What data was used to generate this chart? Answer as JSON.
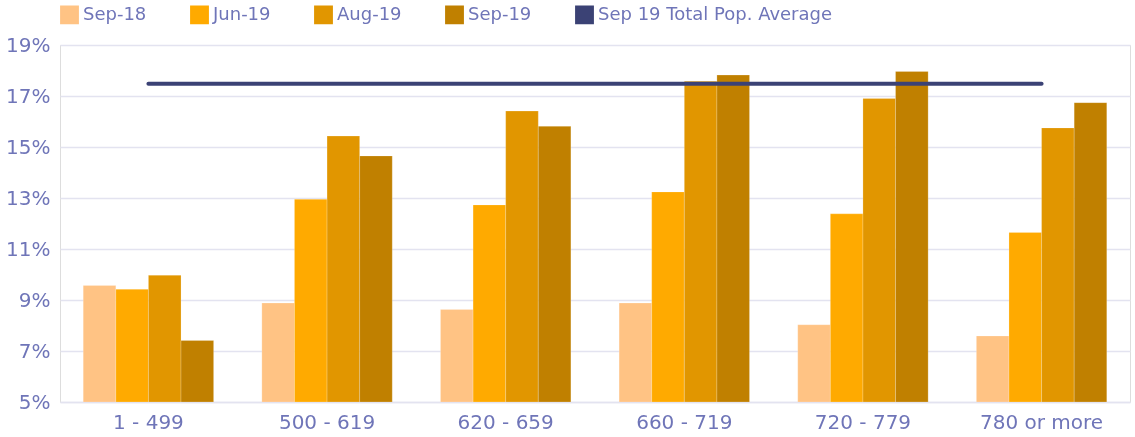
{
  "chart_data": {
    "type": "bar",
    "categories": [
      "1 - 499",
      "500 - 619",
      "620 - 659",
      "660 - 719",
      "720 - 779",
      "780 or more"
    ],
    "series": [
      {
        "name": "Sep-18",
        "color": "#ffc384",
        "values": [
          9.57,
          8.88,
          8.63,
          8.88,
          8.03,
          7.59
        ]
      },
      {
        "name": "Jun-19",
        "color": "#ffaa00",
        "values": [
          9.42,
          12.95,
          12.73,
          13.24,
          12.38,
          11.65
        ]
      },
      {
        "name": "Aug-19",
        "color": "#e19600",
        "values": [
          9.97,
          15.43,
          16.41,
          17.58,
          16.9,
          15.75
        ]
      },
      {
        "name": "Sep-19",
        "color": "#c08000",
        "values": [
          7.41,
          14.65,
          15.81,
          17.82,
          17.96,
          16.74
        ]
      },
      {
        "name": "Sep 19 Total Pop. Average",
        "color": "#3b4275",
        "type": "line",
        "values": [
          17.48,
          17.48,
          17.48,
          17.48,
          17.48,
          17.48
        ]
      }
    ],
    "ylim": [
      5,
      19
    ],
    "yticks": [
      {
        "value": 5,
        "label": "5%"
      },
      {
        "value": 7,
        "label": "7%"
      },
      {
        "value": 9,
        "label": "9%"
      },
      {
        "value": 11,
        "label": "11%"
      },
      {
        "value": 13,
        "label": "13%"
      },
      {
        "value": 15,
        "label": "15%"
      },
      {
        "value": 17,
        "label": "17%"
      },
      {
        "value": 19,
        "label": "19%"
      }
    ],
    "grid": "y",
    "legend": "top"
  }
}
